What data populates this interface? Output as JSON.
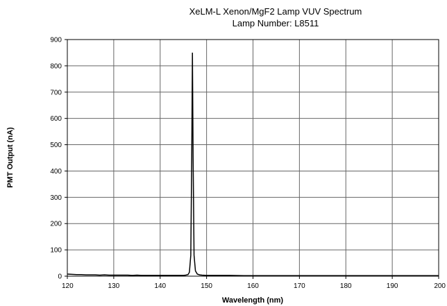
{
  "chart_data": {
    "type": "line",
    "title": "XeLM-L Xenon/MgF2 Lamp VUV Spectrum",
    "subtitle": "Lamp Number: L8511",
    "xlabel": "Wavelength (nm)",
    "ylabel": "PMT Output (nA)",
    "xlim": [
      120,
      200
    ],
    "ylim": [
      0,
      900
    ],
    "xticks": [
      120,
      130,
      140,
      150,
      160,
      170,
      180,
      190,
      200
    ],
    "yticks": [
      0,
      100,
      200,
      300,
      400,
      500,
      600,
      700,
      800,
      900
    ],
    "grid": true,
    "legend": "none",
    "line_color": "#000000",
    "series": [
      {
        "x": [
          120,
          121,
          122,
          123,
          124,
          125,
          126,
          127,
          128,
          129,
          130,
          131,
          132,
          133,
          134,
          135,
          136,
          137,
          138,
          139,
          140,
          141,
          142,
          143,
          144,
          145,
          145.5,
          146,
          146.3,
          146.6,
          146.8,
          146.95,
          147.1,
          147.3,
          147.6,
          148,
          148.5,
          149,
          150,
          152,
          155,
          158,
          160,
          163,
          166,
          170,
          173,
          176,
          180,
          183,
          186,
          190,
          193,
          196,
          200
        ],
        "y": [
          8,
          7,
          6,
          6,
          5,
          5,
          5,
          4,
          5,
          4,
          4,
          4,
          4,
          4,
          3,
          4,
          3,
          3,
          3,
          3,
          3,
          3,
          3,
          3,
          3,
          3,
          4,
          6,
          15,
          80,
          450,
          850,
          450,
          80,
          20,
          8,
          5,
          4,
          3,
          3,
          3,
          2,
          2,
          2,
          2,
          2,
          2,
          2,
          2,
          2,
          2,
          2,
          2,
          2,
          2
        ]
      }
    ]
  }
}
